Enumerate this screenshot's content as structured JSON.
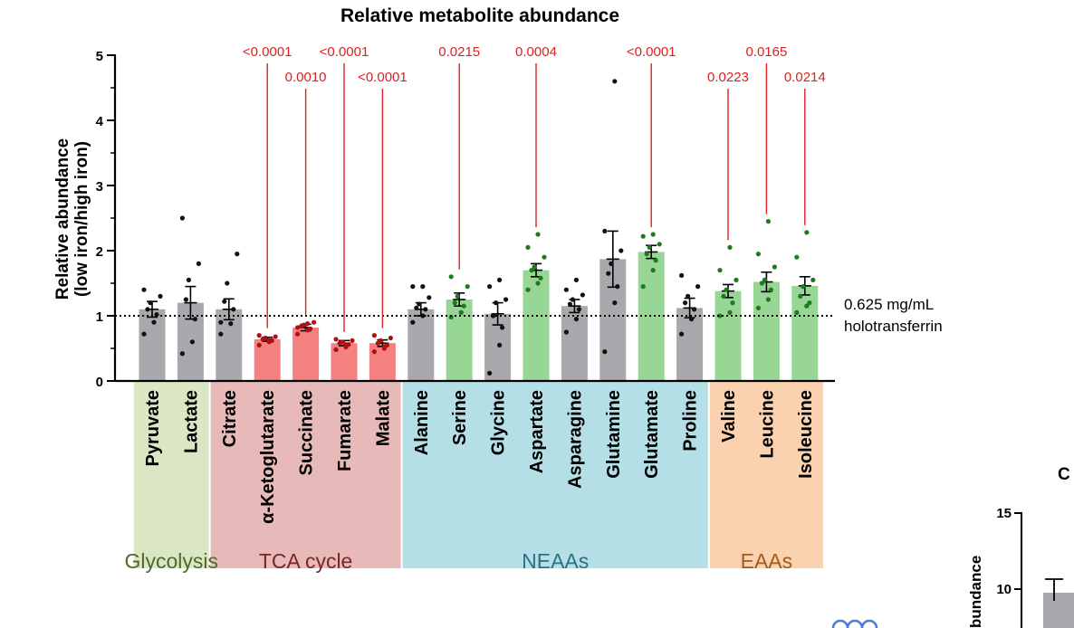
{
  "chart_data": {
    "type": "bar",
    "title": "Relative metabolite abundance",
    "ylabel_line1": "Relative abundance",
    "ylabel_line2": "(low iron/high iron)",
    "ylim": [
      0,
      5
    ],
    "yticks": [
      0,
      1,
      2,
      3,
      4,
      5
    ],
    "reference_line": {
      "value": 1,
      "label_line1": "0.625 mg/mL",
      "label_line2": "holotransferrin"
    },
    "categories": [
      "Pyruvate",
      "Lactate",
      "Citrate",
      "α-Ketoglutarate",
      "Succinate",
      "Fumarate",
      "Malate",
      "Alanine",
      "Serine",
      "Glycine",
      "Aspartate",
      "Asparagine",
      "Glutamine",
      "Glutamate",
      "Proline",
      "Valine",
      "Leucine",
      "Isoleucine"
    ],
    "values": [
      1.1,
      1.2,
      1.1,
      0.64,
      0.82,
      0.58,
      0.58,
      1.1,
      1.25,
      1.03,
      1.7,
      1.15,
      1.87,
      1.98,
      1.12,
      1.38,
      1.52,
      1.46
    ],
    "error": [
      0.12,
      0.25,
      0.16,
      0.03,
      0.05,
      0.04,
      0.05,
      0.1,
      0.1,
      0.17,
      0.1,
      0.1,
      0.43,
      0.1,
      0.15,
      0.1,
      0.15,
      0.14
    ],
    "status": [
      "ns",
      "ns",
      "ns",
      "down",
      "down",
      "down",
      "down",
      "ns",
      "up",
      "ns",
      "up",
      "ns",
      "ns",
      "up",
      "ns",
      "up",
      "up",
      "up"
    ],
    "points": [
      [
        0.72,
        0.9,
        1.02,
        1.1,
        1.2,
        1.3,
        1.4
      ],
      [
        0.42,
        0.6,
        0.95,
        1.25,
        1.55,
        1.8,
        2.5
      ],
      [
        0.72,
        0.88,
        1.1,
        1.22,
        1.5,
        1.95,
        0.9
      ],
      [
        0.55,
        0.6,
        0.62,
        0.64,
        0.66,
        0.68,
        0.7,
        0.62
      ],
      [
        0.72,
        0.78,
        0.8,
        0.84,
        0.86,
        0.9,
        0.82,
        0.88
      ],
      [
        0.48,
        0.52,
        0.56,
        0.58,
        0.6,
        0.62,
        0.64,
        0.56
      ],
      [
        0.45,
        0.5,
        0.55,
        0.58,
        0.62,
        0.66,
        0.7,
        0.52
      ],
      [
        0.9,
        1.0,
        1.1,
        1.12,
        1.18,
        1.28,
        1.45,
        1.45
      ],
      [
        0.98,
        1.05,
        1.15,
        1.2,
        1.3,
        1.45,
        1.6,
        1.05
      ],
      [
        0.12,
        0.55,
        0.82,
        1.0,
        1.2,
        1.25,
        1.45,
        1.55
      ],
      [
        1.4,
        1.5,
        1.58,
        1.7,
        1.75,
        1.9,
        2.05,
        2.25
      ],
      [
        0.75,
        0.95,
        1.1,
        1.18,
        1.25,
        1.32,
        1.4,
        1.55
      ],
      [
        0.45,
        1.2,
        1.45,
        1.65,
        1.8,
        2.0,
        2.3,
        4.6
      ],
      [
        1.45,
        1.7,
        1.85,
        1.95,
        2.05,
        2.1,
        2.22,
        2.25
      ],
      [
        0.72,
        0.95,
        1.1,
        1.2,
        1.3,
        1.45,
        1.62
      ],
      [
        1.0,
        1.05,
        1.2,
        1.3,
        1.4,
        1.55,
        1.7,
        2.05
      ],
      [
        1.12,
        1.25,
        1.4,
        1.5,
        1.55,
        1.75,
        1.95,
        2.45
      ],
      [
        1.05,
        1.15,
        1.2,
        1.3,
        1.45,
        1.55,
        1.9,
        2.28
      ]
    ],
    "pvalues": [
      {
        "category": "α-Ketoglutarate",
        "label": "<0.0001",
        "row": 1
      },
      {
        "category": "Succinate",
        "label": "0.0010",
        "row": 2
      },
      {
        "category": "Fumarate",
        "label": "<0.0001",
        "row": 1
      },
      {
        "category": "Malate",
        "label": "<0.0001",
        "row": 2
      },
      {
        "category": "Serine",
        "label": "0.0215",
        "row": 1
      },
      {
        "category": "Aspartate",
        "label": "0.0004",
        "row": 1
      },
      {
        "category": "Glutamate",
        "label": "<0.0001",
        "row": 1
      },
      {
        "category": "Valine",
        "label": "0.0223",
        "row": 2
      },
      {
        "category": "Leucine",
        "label": "0.0165",
        "row": 1
      },
      {
        "category": "Isoleucine",
        "label": "0.0214",
        "row": 2
      }
    ],
    "groups": [
      {
        "name": "Glycolysis",
        "categories": [
          "Pyruvate",
          "Lactate"
        ],
        "bg": "#dbe6c4",
        "text": "#4f6a2a"
      },
      {
        "name": "TCA cycle",
        "categories": [
          "Citrate",
          "α-Ketoglutarate",
          "Succinate",
          "Fumarate",
          "Malate"
        ],
        "bg": "#e8b9b9",
        "text": "#7a2626"
      },
      {
        "name": "NEAAs",
        "categories": [
          "Alanine",
          "Serine",
          "Glycine",
          "Aspartate",
          "Asparagine",
          "Glutamine",
          "Glutamate",
          "Proline"
        ],
        "bg": "#b5dfe6",
        "text": "#2f6f84"
      },
      {
        "name": "EAAs",
        "categories": [
          "Valine",
          "Leucine",
          "Isoleucine"
        ],
        "bg": "#fbd2af",
        "text": "#a35a1a"
      }
    ],
    "colors": {
      "ns_bar": "#a9a9ad",
      "down_bar": "#f48080",
      "up_bar": "#98d695",
      "ns_dot": "#111111",
      "down_dot": "#b01010",
      "up_dot": "#1e7a1e",
      "pvalue": "#dd2020"
    }
  },
  "side_panel": {
    "letter": "C",
    "ytick_15": "15",
    "ytick_10": "10",
    "ylabel_fragment": "bundance"
  }
}
